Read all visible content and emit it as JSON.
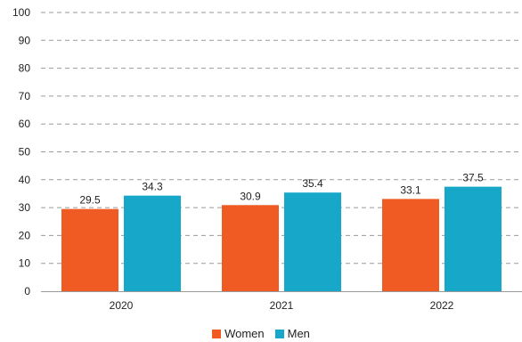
{
  "chart_data": {
    "type": "bar",
    "categories": [
      "2020",
      "2021",
      "2022"
    ],
    "series": [
      {
        "name": "Women",
        "values": [
          29.5,
          30.9,
          33.1
        ],
        "color": "#f05a23"
      },
      {
        "name": "Men",
        "values": [
          34.3,
          35.4,
          37.5
        ],
        "color": "#17a8c9"
      }
    ],
    "ylim": [
      0,
      100
    ],
    "yticks": [
      0,
      10,
      20,
      30,
      40,
      50,
      60,
      70,
      80,
      90,
      100
    ],
    "grid": true,
    "grid_style": "dashed",
    "legend_position": "bottom",
    "data_labels": true
  }
}
